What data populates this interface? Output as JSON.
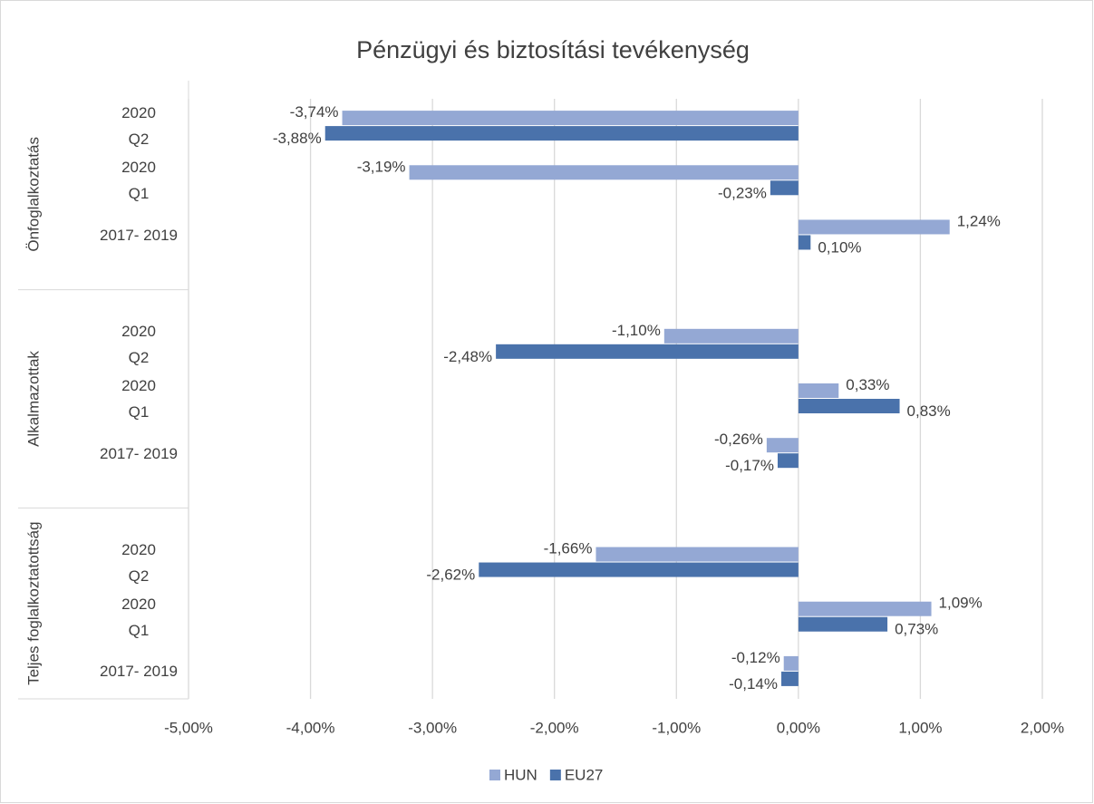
{
  "chart_data": {
    "type": "bar",
    "orientation": "horizontal",
    "title": "Pénzügyi és biztosítási tevékenység",
    "category_groups": [
      {
        "name": "Önfoglalkoztatás",
        "categories": [
          "2020\nQ2",
          "2020\nQ1",
          "2017- 2019"
        ]
      },
      {
        "name": "Alkalmazottak",
        "categories": [
          "2020\nQ2",
          "2020\nQ1",
          "2017- 2019"
        ]
      },
      {
        "name": "Teljes foglalkoztatottság",
        "categories": [
          "2020\nQ2",
          "2020\nQ1",
          "2017- 2019"
        ]
      }
    ],
    "series": [
      {
        "name": "HUN",
        "color": "#94a8d4",
        "values": [
          -3.74,
          -3.19,
          1.24,
          -1.1,
          0.33,
          -0.26,
          -1.66,
          1.09,
          -0.12
        ],
        "value_labels": [
          "-3,74%",
          "-3,19%",
          "1,24%",
          "-1,10%",
          "0,33%",
          "-0,26%",
          "-1,66%",
          "1,09%",
          "-0,12%"
        ]
      },
      {
        "name": "EU27",
        "color": "#4a72ab",
        "values": [
          -3.88,
          -0.23,
          0.1,
          -2.48,
          0.83,
          -0.17,
          -2.62,
          0.73,
          -0.14
        ],
        "value_labels": [
          "-3,88%",
          "-0,23%",
          "0,10%",
          "-2,48%",
          "0,83%",
          "-0,17%",
          "-2,62%",
          "0,73%",
          "-0,14%"
        ]
      }
    ],
    "xlim": [
      -5,
      2
    ],
    "xticks": [
      {
        "value": -5,
        "label": "-5,00%"
      },
      {
        "value": -4,
        "label": "-4,00%"
      },
      {
        "value": -3,
        "label": "-3,00%"
      },
      {
        "value": -2,
        "label": "-2,00%"
      },
      {
        "value": -1,
        "label": "-1,00%"
      },
      {
        "value": 0,
        "label": "0,00%"
      },
      {
        "value": 1,
        "label": "1,00%"
      },
      {
        "value": 2,
        "label": "2,00%"
      }
    ],
    "grid": true,
    "legend": "bottom"
  }
}
